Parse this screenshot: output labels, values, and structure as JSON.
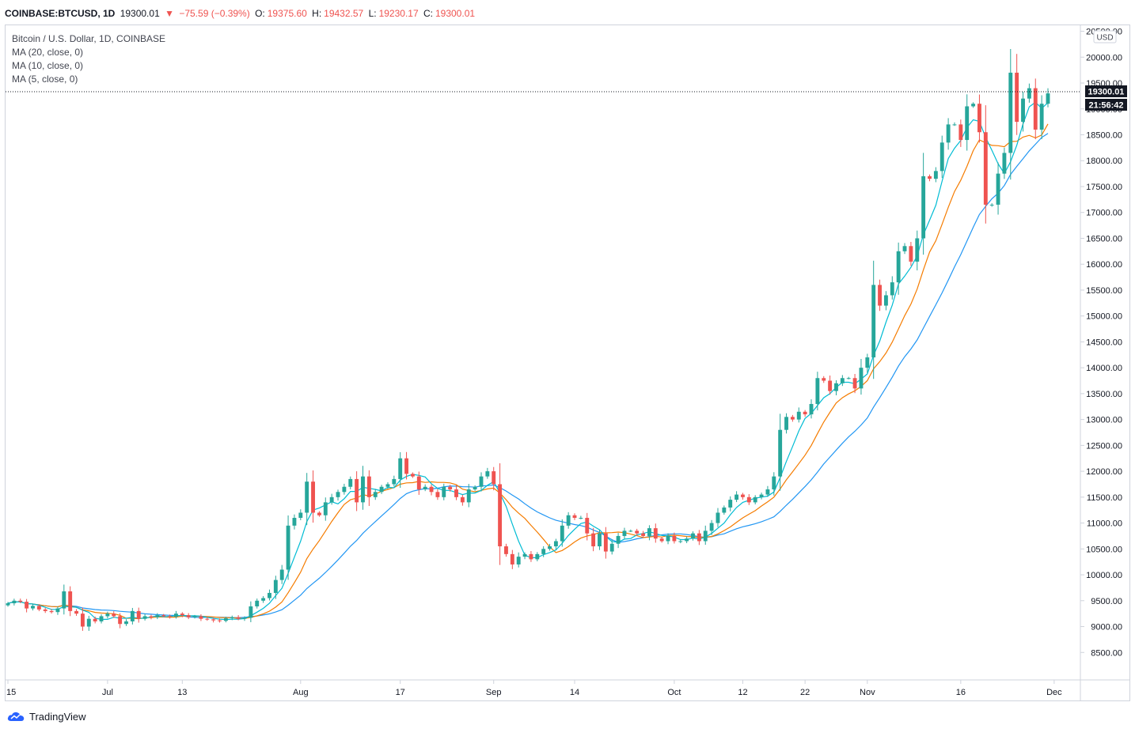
{
  "header": {
    "symbol": "COINBASE:BTCUSD, 1D",
    "last": "19300.01",
    "change": "−75.59 (−0.39%)",
    "o_label": "O:",
    "o_value": "19375.60",
    "h_label": "H:",
    "h_value": "19432.57",
    "l_label": "L:",
    "l_value": "19230.17",
    "c_label": "C:",
    "c_value": "19300.01"
  },
  "legend": {
    "title": "Bitcoin / U.S. Dollar, 1D, COINBASE",
    "ma20": "MA (20, close, 0)",
    "ma10": "MA (10, close, 0)",
    "ma5": "MA (5, close, 0)"
  },
  "price_axis": {
    "currency": "USD",
    "last_price_tag": "19300.01",
    "countdown_tag": "21:56:42"
  },
  "brand": {
    "name": "TradingView"
  },
  "colors": {
    "up": "#26a69a",
    "down": "#ef5350",
    "ma20": "#2196f3",
    "ma10": "#f57c00",
    "ma5": "#00bcd4"
  },
  "chart_data": {
    "type": "candlestick",
    "title": "Bitcoin / U.S. Dollar, 1D, COINBASE",
    "ylim": [
      8000,
      20600
    ],
    "yticks": [
      8500,
      9000,
      9500,
      10000,
      10500,
      11000,
      11500,
      12000,
      12500,
      13000,
      13500,
      14000,
      14500,
      15000,
      15500,
      16000,
      16500,
      17000,
      17500,
      18000,
      18500,
      19000,
      19500,
      20000,
      20500
    ],
    "ytick_labels": [
      "8500.00",
      "9000.00",
      "9500.00",
      "10000.00",
      "10500.00",
      "11000.00",
      "11500.00",
      "12000.00",
      "12500.00",
      "13000.00",
      "13500.00",
      "14000.00",
      "14500.00",
      "15000.00",
      "15500.00",
      "16000.00",
      "16500.00",
      "17000.00",
      "17500.00",
      "18000.00",
      "18500.00",
      "19000.00",
      "19500.00",
      "20000.00",
      "20500.00"
    ],
    "xticks": [
      {
        "label": "15",
        "index": 0
      },
      {
        "label": "Jul",
        "index": 16
      },
      {
        "label": "13",
        "index": 28
      },
      {
        "label": "Aug",
        "index": 47
      },
      {
        "label": "17",
        "index": 63
      },
      {
        "label": "Sep",
        "index": 78
      },
      {
        "label": "14",
        "index": 91
      },
      {
        "label": "Oct",
        "index": 107
      },
      {
        "label": "12",
        "index": 118
      },
      {
        "label": "22",
        "index": 128
      },
      {
        "label": "Nov",
        "index": 138
      },
      {
        "label": "16",
        "index": 153
      },
      {
        "label": "Dec",
        "index": 168
      }
    ],
    "closes": [
      9450,
      9500,
      9480,
      9350,
      9400,
      9330,
      9300,
      9280,
      9350,
      9680,
      9300,
      9250,
      9000,
      9150,
      9100,
      9200,
      9250,
      9200,
      9050,
      9100,
      9300,
      9150,
      9200,
      9180,
      9220,
      9200,
      9190,
      9250,
      9220,
      9180,
      9200,
      9150,
      9140,
      9120,
      9110,
      9160,
      9180,
      9150,
      9170,
      9390,
      9500,
      9550,
      9650,
      9900,
      10100,
      10950,
      11100,
      11200,
      11800,
      11200,
      11150,
      11400,
      11500,
      11600,
      11700,
      11850,
      11400,
      11900,
      11500,
      11600,
      11700,
      11750,
      11850,
      12250,
      11950,
      11900,
      11650,
      11700,
      11600,
      11500,
      11700,
      11650,
      11500,
      11400,
      11650,
      11700,
      11900,
      12000,
      11750,
      10550,
      10400,
      10200,
      10350,
      10400,
      10300,
      10400,
      10500,
      10550,
      10650,
      10950,
      11150,
      11100,
      11100,
      10800,
      10550,
      10800,
      10450,
      10600,
      10750,
      10850,
      10850,
      10800,
      10750,
      10900,
      10700,
      10650,
      10750,
      10650,
      10650,
      10700,
      10800,
      10650,
      10850,
      11000,
      11200,
      11300,
      11450,
      11550,
      11500,
      11400,
      11500,
      11550,
      11650,
      11900,
      12800,
      13050,
      13000,
      13150,
      13100,
      13300,
      13800,
      13750,
      13550,
      13700,
      13800,
      13800,
      13600,
      14000,
      14200,
      15600,
      15200,
      15400,
      15650,
      16250,
      16350,
      16050,
      16500,
      17700,
      17650,
      17800,
      18350,
      18700,
      18700,
      18400,
      19050,
      19100,
      18550,
      17150,
      17150,
      17750,
      18150,
      19700,
      18750,
      19200,
      19400,
      18600,
      19100,
      19300
    ],
    "ma_periods": {
      "ma20": 20,
      "ma10": 10,
      "ma5": 5
    }
  }
}
